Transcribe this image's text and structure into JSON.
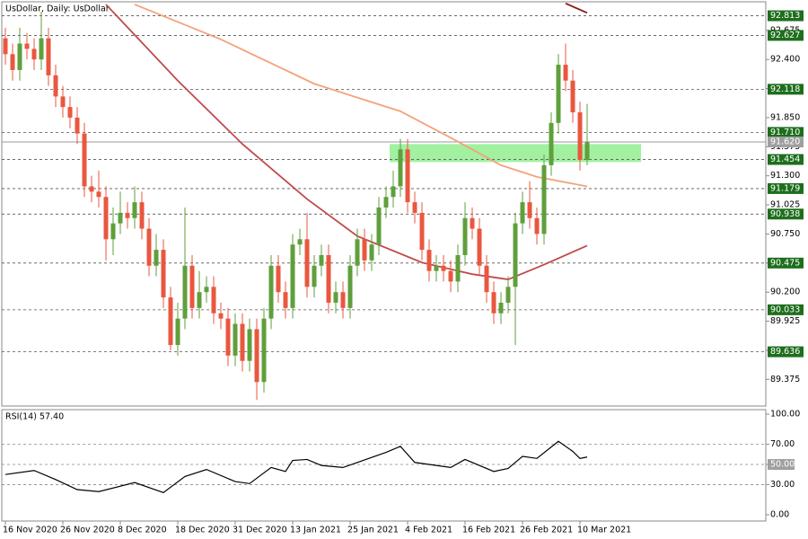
{
  "chart_data": {
    "type": "candlestick",
    "title": "UsDollar, Daily:  UsDollar",
    "open": [
      92.6,
      92.45,
      92.3,
      92.55,
      92.5,
      92.4,
      92.6,
      92.25,
      92.05,
      91.95,
      91.85,
      91.7,
      91.2,
      91.15,
      91.1,
      90.7,
      90.85,
      90.95,
      90.9,
      91.05,
      90.8,
      90.45,
      90.6,
      90.15,
      89.7,
      89.95,
      90.45,
      90.05,
      90.2,
      90.25,
      90.0,
      89.95,
      89.6,
      89.9,
      89.55,
      89.85,
      89.35,
      89.95,
      90.45,
      90.2,
      90.05,
      90.65,
      90.7,
      90.25,
      90.45,
      90.55,
      90.1,
      90.2,
      90.05,
      90.45,
      90.7,
      90.5,
      90.65,
      91.0,
      91.1,
      91.2,
      91.55,
      91.05,
      90.95,
      90.6,
      90.4,
      90.45,
      90.4,
      90.3,
      90.55,
      90.9,
      90.8,
      90.45,
      90.2,
      90.0,
      90.1,
      90.25,
      90.85,
      91.05,
      90.9,
      90.75,
      91.4,
      91.8,
      92.35,
      92.2,
      91.9,
      91.45
    ],
    "high": [
      92.7,
      92.55,
      92.7,
      92.65,
      92.6,
      92.85,
      92.7,
      92.35,
      92.15,
      92.05,
      91.95,
      91.8,
      91.3,
      91.35,
      91.2,
      91.0,
      91.15,
      91.05,
      91.2,
      91.15,
      90.9,
      90.75,
      90.7,
      90.25,
      90.1,
      91.0,
      90.55,
      90.4,
      90.35,
      90.35,
      90.1,
      90.05,
      90.0,
      90.0,
      89.95,
      89.95,
      90.05,
      90.55,
      90.55,
      90.3,
      90.75,
      90.8,
      90.95,
      90.55,
      90.65,
      90.65,
      90.3,
      90.3,
      90.55,
      90.8,
      90.8,
      90.75,
      91.1,
      91.2,
      91.35,
      91.65,
      91.65,
      91.15,
      91.05,
      90.7,
      90.55,
      90.55,
      90.5,
      90.65,
      91.05,
      91.0,
      90.9,
      90.55,
      90.3,
      90.2,
      90.35,
      90.95,
      91.15,
      91.25,
      91.0,
      91.5,
      91.9,
      92.45,
      92.55,
      92.3,
      92.0,
      91.98
    ],
    "low": [
      92.35,
      92.2,
      92.2,
      92.4,
      92.3,
      92.3,
      92.15,
      91.95,
      91.85,
      91.75,
      91.6,
      91.1,
      91.05,
      91.0,
      90.5,
      90.55,
      90.75,
      90.8,
      90.8,
      90.7,
      90.35,
      90.35,
      90.05,
      89.65,
      89.6,
      89.85,
      89.95,
      89.95,
      90.1,
      89.9,
      89.85,
      89.5,
      89.5,
      89.45,
      89.45,
      89.18,
      89.25,
      89.85,
      90.1,
      89.95,
      89.95,
      90.55,
      90.15,
      90.15,
      90.35,
      90.0,
      90.0,
      89.95,
      89.95,
      90.35,
      90.4,
      90.4,
      90.55,
      90.9,
      91.0,
      91.1,
      90.95,
      90.85,
      90.5,
      90.3,
      90.3,
      90.3,
      90.2,
      90.2,
      90.45,
      90.7,
      90.35,
      90.1,
      89.9,
      89.9,
      90.0,
      89.7,
      90.75,
      90.8,
      90.65,
      90.65,
      91.3,
      91.7,
      92.1,
      91.8,
      91.35,
      91.4
    ],
    "close": [
      92.45,
      92.3,
      92.55,
      92.5,
      92.4,
      92.6,
      92.25,
      92.05,
      91.95,
      91.85,
      91.7,
      91.2,
      91.15,
      91.1,
      90.7,
      90.85,
      90.95,
      90.9,
      91.05,
      90.8,
      90.45,
      90.6,
      90.15,
      89.7,
      89.95,
      90.45,
      90.05,
      90.2,
      90.25,
      90.0,
      89.95,
      89.6,
      89.9,
      89.55,
      89.85,
      89.35,
      89.95,
      90.45,
      90.2,
      90.05,
      90.65,
      90.7,
      90.25,
      90.45,
      90.55,
      90.1,
      90.2,
      90.05,
      90.45,
      90.7,
      90.5,
      90.65,
      91.0,
      91.1,
      91.2,
      91.55,
      91.05,
      90.95,
      90.6,
      90.4,
      90.45,
      90.4,
      90.3,
      90.55,
      90.9,
      90.8,
      90.45,
      90.2,
      90.0,
      90.1,
      90.25,
      90.85,
      91.05,
      90.9,
      90.75,
      91.4,
      91.8,
      92.35,
      92.2,
      91.9,
      91.45,
      91.62
    ],
    "up_color": "#5f9f3c",
    "down_color": "#e9573f",
    "moving_averages": [
      {
        "color": "#bf4b4b",
        "x": [
          14,
          24,
          33,
          42,
          49,
          58,
          65,
          70,
          75,
          81
        ],
        "values": [
          92.92,
          92.2,
          91.6,
          91.08,
          90.73,
          90.48,
          90.37,
          90.32,
          90.46,
          90.64
        ]
      },
      {
        "color": "#f4a27a",
        "x": [
          18,
          30,
          43,
          55,
          62,
          69,
          74,
          81
        ],
        "values": [
          92.92,
          92.59,
          92.17,
          91.91,
          91.66,
          91.4,
          91.29,
          91.2
        ]
      },
      {
        "color": "#8b1a1a",
        "x": [
          78,
          81
        ],
        "values": [
          92.93,
          92.84
        ]
      }
    ],
    "zone": {
      "x": [
        53.5,
        88.5
      ],
      "y": [
        91.43,
        91.6
      ],
      "color": "#90ee90"
    },
    "ylim": [
      89.123,
      92.945
    ],
    "yticks": [
      {
        "value": 89.375,
        "label": "89.375"
      },
      {
        "value": 89.65,
        "label": "89.650"
      },
      {
        "value": 89.925,
        "label": "89.925"
      },
      {
        "value": 90.2,
        "label": "90.200"
      },
      {
        "value": 90.475,
        "label": "90.475"
      },
      {
        "value": 90.75,
        "label": "90.750"
      },
      {
        "value": 91.025,
        "label": "91.025"
      },
      {
        "value": 91.3,
        "label": "91.300"
      },
      {
        "value": 91.575,
        "label": "91.575"
      },
      {
        "value": 91.85,
        "label": "91.850"
      },
      {
        "value": 92.125,
        "label": "92.125"
      },
      {
        "value": 92.4,
        "label": "92.400"
      },
      {
        "value": 92.675,
        "label": "92.675"
      }
    ],
    "levels": [
      {
        "value": 92.813,
        "label": "92.813"
      },
      {
        "value": 92.627,
        "label": "92.627"
      },
      {
        "value": 92.118,
        "label": "92.118"
      },
      {
        "value": 91.71,
        "label": "91.710"
      },
      {
        "value": 91.454,
        "label": "91.454"
      },
      {
        "value": 91.179,
        "label": "91.179"
      },
      {
        "value": 90.938,
        "label": "90.938"
      },
      {
        "value": 90.475,
        "label": "90.475"
      },
      {
        "value": 90.033,
        "label": "90.033"
      },
      {
        "value": 89.636,
        "label": "89.636"
      }
    ],
    "level_color": "#1e6e1e",
    "current_price": {
      "value": 91.62,
      "label": "91.620"
    },
    "xlabels": [
      {
        "index": 0,
        "label": "16 Nov 2020"
      },
      {
        "index": 8,
        "label": "26 Nov 2020"
      },
      {
        "index": 16,
        "label": "8 Dec 2020"
      },
      {
        "index": 24,
        "label": "18 Dec 2020"
      },
      {
        "index": 32,
        "label": "31 Dec 2020"
      },
      {
        "index": 40,
        "label": "13 Jan 2021"
      },
      {
        "index": 48,
        "label": "25 Jan 2021"
      },
      {
        "index": 56,
        "label": "4 Feb 2021"
      },
      {
        "index": 64,
        "label": "16 Feb 2021"
      },
      {
        "index": 72,
        "label": "26 Feb 2021"
      },
      {
        "index": 80,
        "label": "10 Mar 2021"
      }
    ],
    "rsi": {
      "label": "RSI(14) 57.40",
      "x": [
        0,
        4,
        7,
        10,
        13,
        18,
        22,
        25,
        28,
        32,
        34,
        37,
        39,
        40,
        42,
        44,
        47,
        49,
        53,
        55,
        57,
        62,
        64,
        68,
        70,
        72,
        74,
        77,
        79,
        80,
        81
      ],
      "values": [
        40,
        44,
        35,
        25,
        23,
        32,
        22,
        38,
        45,
        33,
        31,
        47,
        43,
        54,
        55,
        49,
        47,
        52,
        62,
        68,
        52,
        47,
        55,
        43,
        46,
        58,
        56,
        73,
        63,
        56,
        57.4
      ],
      "ylim": [
        -6.25,
        104.5
      ],
      "yticks": [
        {
          "value": 0,
          "label": "0.00"
        },
        {
          "value": 30,
          "label": "30.00"
        },
        {
          "value": 50,
          "label": "50.00"
        },
        {
          "value": 70,
          "label": "70.00"
        },
        {
          "value": 100,
          "label": "100.00"
        }
      ],
      "highlight": {
        "value": 50,
        "label": "50.00"
      }
    }
  }
}
